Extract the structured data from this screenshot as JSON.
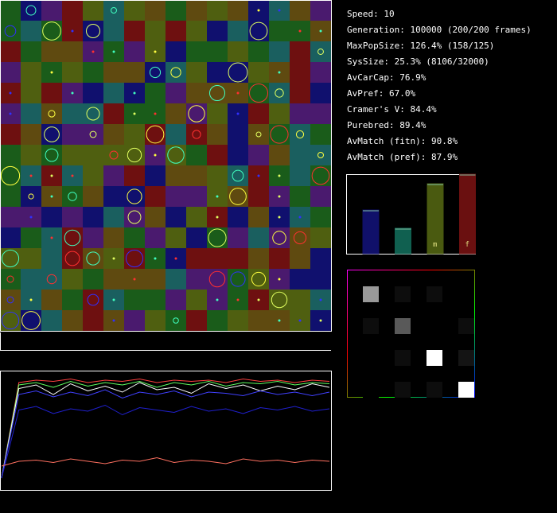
{
  "stats": [
    "Speed: 10",
    "Generation: 100000 (200/200 frames)",
    "MaxPopSize: 126.4% (158/125)",
    "SysSize: 25.3% (8106/32000)",
    "AvCarCap: 76.9%",
    "AvPref: 67.0%",
    "Cramer's V: 84.4%",
    "Purebred: 89.4%",
    "AvMatch (fitn): 90.8%",
    "AvMatch (pref): 87.9%"
  ],
  "bars": {
    "ylim": [
      0,
      100
    ],
    "values": [
      55,
      32,
      88,
      100
    ],
    "colors": [
      "#10106a",
      "#106050",
      "#4a5a10",
      "#6a1010"
    ],
    "labels": [
      null,
      null,
      "m",
      "f"
    ]
  },
  "matrix": {
    "values": [
      [
        0.6,
        0.05,
        0.05,
        0
      ],
      [
        0.05,
        0.35,
        0,
        0.05
      ],
      [
        0,
        0.05,
        1,
        0.08
      ],
      [
        0,
        0.05,
        0.05,
        1
      ]
    ]
  },
  "history": {
    "ylim": [
      0,
      100
    ],
    "series": [
      {
        "color": "#ff4040",
        "values": [
          10,
          90,
          92,
          91,
          93,
          90,
          92,
          91,
          93,
          90,
          92,
          91,
          92,
          90,
          93,
          91,
          92,
          90,
          92,
          91
        ]
      },
      {
        "color": "#60ff60",
        "values": [
          10,
          88,
          90,
          86,
          91,
          87,
          90,
          88,
          91,
          86,
          90,
          88,
          91,
          87,
          90,
          89,
          91,
          88,
          90,
          89
        ]
      },
      {
        "color": "#ffffff",
        "values": [
          10,
          85,
          88,
          80,
          89,
          83,
          87,
          82,
          90,
          84,
          86,
          81,
          89,
          85,
          88,
          83,
          87,
          84,
          89,
          86
        ]
      },
      {
        "color": "#4040ff",
        "values": [
          10,
          80,
          83,
          78,
          82,
          79,
          84,
          77,
          82,
          80,
          83,
          78,
          82,
          81,
          79,
          83,
          80,
          82,
          79,
          82
        ]
      },
      {
        "color": "#2020d0",
        "values": [
          10,
          67,
          70,
          64,
          68,
          66,
          71,
          63,
          69,
          67,
          65,
          70,
          66,
          68,
          64,
          69,
          67,
          70,
          66,
          68
        ]
      },
      {
        "color": "#ff7060",
        "values": [
          20,
          24,
          25,
          23,
          26,
          24,
          22,
          25,
          24,
          27,
          23,
          25,
          24,
          22,
          26,
          24,
          25,
          23,
          25,
          24
        ]
      }
    ]
  }
}
